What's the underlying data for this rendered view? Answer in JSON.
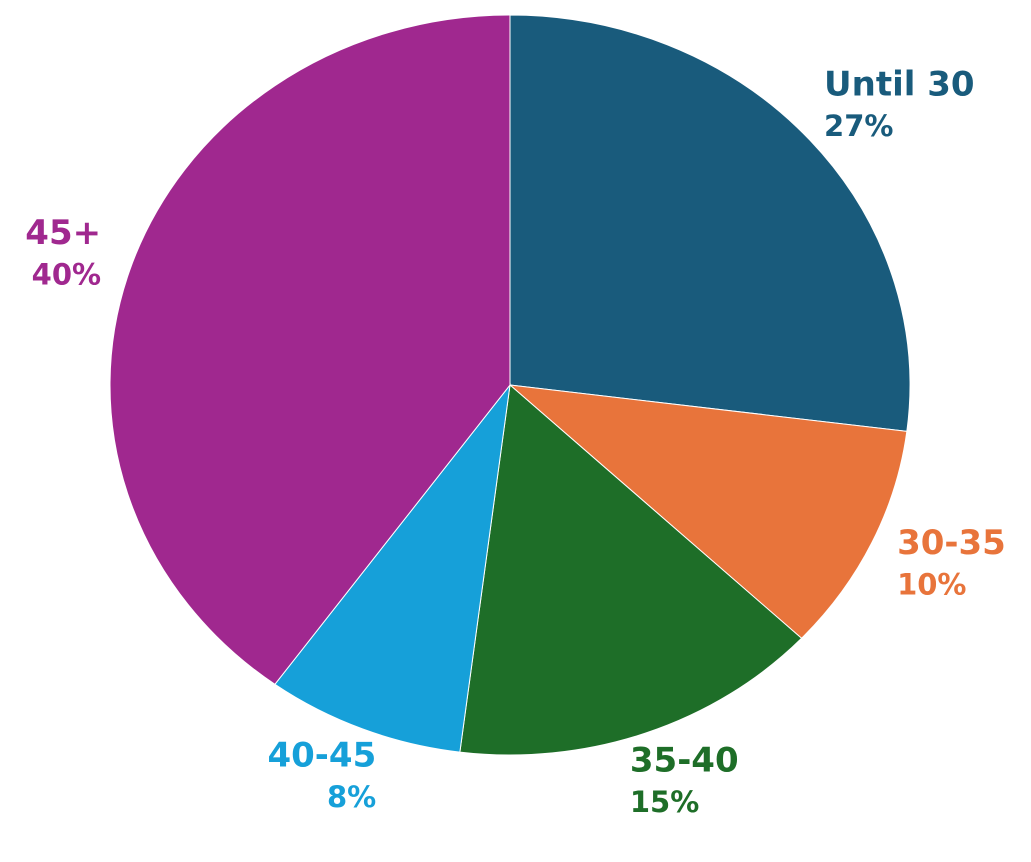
{
  "chart_data": {
    "type": "pie",
    "categories": [
      "Until 30",
      "30-35",
      "35-40",
      "40-45",
      "45+"
    ],
    "values": [
      27,
      10,
      15,
      8,
      40
    ],
    "value_labels": [
      "27%",
      "10%",
      "15%",
      "8%",
      "40%"
    ],
    "colors": [
      "#195b7c",
      "#e8743b",
      "#1e6e28",
      "#16a0d9",
      "#a0288f"
    ]
  }
}
